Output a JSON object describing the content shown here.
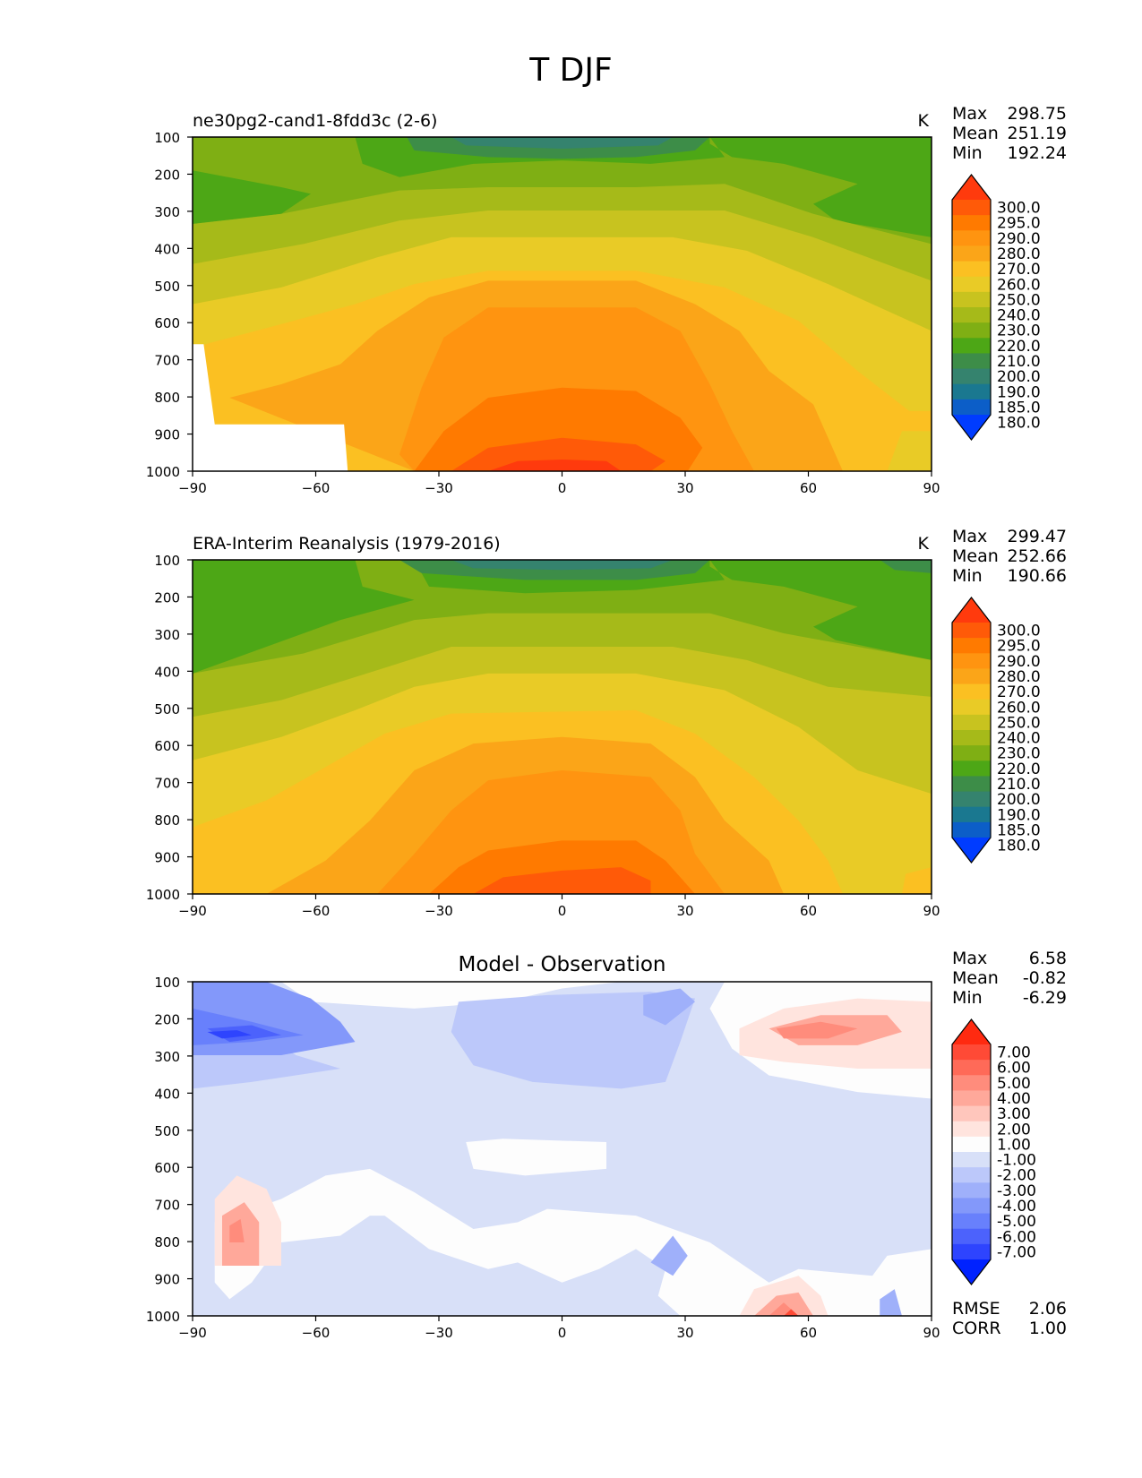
{
  "title": "T DJF",
  "chart_data": [
    {
      "type": "contour",
      "title": "ne30pg2-cand1-8fdd3c (2-6)",
      "units": "K",
      "stats": [
        {
          "label": "Max",
          "value": "298.75"
        },
        {
          "label": "Mean",
          "value": "251.19"
        },
        {
          "label": "Min",
          "value": "192.24"
        }
      ],
      "x_ticks": [
        "−90",
        "−60",
        "−30",
        "0",
        "30",
        "60",
        "90"
      ],
      "xlim": [
        -90,
        90
      ],
      "y_ticks": [
        "100",
        "200",
        "300",
        "400",
        "500",
        "600",
        "700",
        "800",
        "900",
        "1000"
      ],
      "ylim": [
        100,
        1000
      ],
      "y_inverted": true,
      "colorbar": {
        "labels": [
          "300.0",
          "295.0",
          "290.0",
          "280.0",
          "270.0",
          "260.0",
          "250.0",
          "240.0",
          "230.0",
          "220.0",
          "210.0",
          "200.0",
          "190.0",
          "185.0",
          "180.0"
        ],
        "colors": [
          "#ff3a0d",
          "#ff5a08",
          "#ff7a00",
          "#ff9410",
          "#fba518",
          "#fbc022",
          "#e9cb26",
          "#c8c31f",
          "#a6ba19",
          "#7faf14",
          "#4da716",
          "#3d8d48",
          "#35836e",
          "#1a7890",
          "#0c5ec8",
          "#003cff"
        ]
      }
    },
    {
      "type": "contour",
      "title": "ERA-Interim Reanalysis (1979-2016)",
      "units": "K",
      "stats": [
        {
          "label": "Max",
          "value": "299.47"
        },
        {
          "label": "Mean",
          "value": "252.66"
        },
        {
          "label": "Min",
          "value": "190.66"
        }
      ],
      "x_ticks": [
        "−90",
        "−60",
        "−30",
        "0",
        "30",
        "60",
        "90"
      ],
      "xlim": [
        -90,
        90
      ],
      "y_ticks": [
        "100",
        "200",
        "300",
        "400",
        "500",
        "600",
        "700",
        "800",
        "900",
        "1000"
      ],
      "ylim": [
        100,
        1000
      ],
      "y_inverted": true,
      "colorbar": {
        "labels": [
          "300.0",
          "295.0",
          "290.0",
          "280.0",
          "270.0",
          "260.0",
          "250.0",
          "240.0",
          "230.0",
          "220.0",
          "210.0",
          "200.0",
          "190.0",
          "185.0",
          "180.0"
        ],
        "colors": [
          "#ff3a0d",
          "#ff5a08",
          "#ff7a00",
          "#ff9410",
          "#fba518",
          "#fbc022",
          "#e9cb26",
          "#c8c31f",
          "#a6ba19",
          "#7faf14",
          "#4da716",
          "#3d8d48",
          "#35836e",
          "#1a7890",
          "#0c5ec8",
          "#003cff"
        ]
      }
    },
    {
      "type": "contour",
      "title": "Model - Observation",
      "units": "",
      "stats": [
        {
          "label": "Max",
          "value": "6.58"
        },
        {
          "label": "Mean",
          "value": "-0.82"
        },
        {
          "label": "Min",
          "value": "-6.29"
        }
      ],
      "metrics": [
        {
          "label": "RMSE",
          "value": "2.06"
        },
        {
          "label": "CORR",
          "value": "1.00"
        }
      ],
      "x_ticks": [
        "−90",
        "−60",
        "−30",
        "0",
        "30",
        "60",
        "90"
      ],
      "xlim": [
        -90,
        90
      ],
      "y_ticks": [
        "100",
        "200",
        "300",
        "400",
        "500",
        "600",
        "700",
        "800",
        "900",
        "1000"
      ],
      "ylim": [
        100,
        1000
      ],
      "y_inverted": true,
      "colorbar": {
        "labels": [
          "7.00",
          "6.00",
          "5.00",
          "4.00",
          "3.00",
          "2.00",
          "1.00",
          "-1.00",
          "-2.00",
          "-3.00",
          "-4.00",
          "-5.00",
          "-6.00",
          "-7.00"
        ],
        "colors": [
          "#ff2a10",
          "#ff4a36",
          "#ff6a58",
          "#ff8c7c",
          "#ffa89a",
          "#ffc6bc",
          "#ffe4de",
          "#fdfdfd",
          "#d8e0f8",
          "#bcc8fa",
          "#9fb0fa",
          "#8398fa",
          "#6880fc",
          "#4c62fc",
          "#2e44fe",
          "#0022ff"
        ]
      }
    }
  ]
}
